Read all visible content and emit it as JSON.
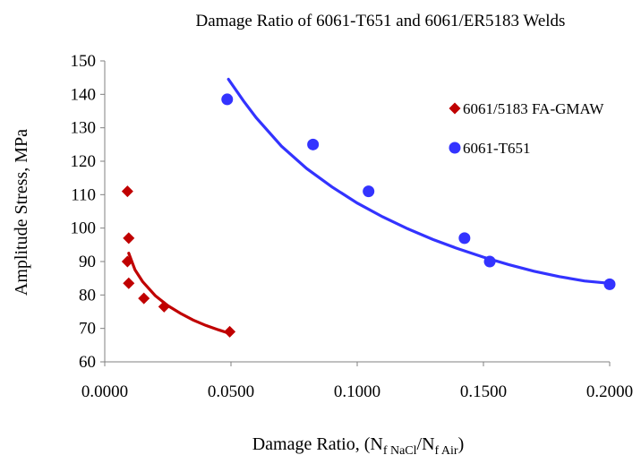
{
  "chart_data": {
    "type": "scatter",
    "title": "Damage Ratio of 6061-T651 and 6061/ER5183 Welds",
    "xlabel_parts": {
      "prefix": "Damage Ratio, (N",
      "sub1": "f NaCl",
      "mid": "/N",
      "sub2": "f Air",
      "suffix": ")"
    },
    "ylabel": "Amplitude Stress, MPa",
    "xlim": [
      0,
      0.2
    ],
    "ylim": [
      60,
      150
    ],
    "xticks": [
      "0.0000",
      "0.0500",
      "0.1000",
      "0.1500",
      "0.2000"
    ],
    "yticks": [
      "60",
      "70",
      "80",
      "90",
      "100",
      "110",
      "120",
      "130",
      "140",
      "150"
    ],
    "xtick_values": [
      0,
      0.05,
      0.1,
      0.15,
      0.2
    ],
    "ytick_values": [
      60,
      70,
      80,
      90,
      100,
      110,
      120,
      130,
      140,
      150
    ],
    "grid": false,
    "legend_position": "right",
    "series": [
      {
        "name": "6061/5183 FA-GMAW",
        "marker": "diamond",
        "color": "#c00000",
        "points": [
          [
            0.009,
            111
          ],
          [
            0.0095,
            97
          ],
          [
            0.009,
            90
          ],
          [
            0.0095,
            83.5
          ],
          [
            0.0155,
            79
          ],
          [
            0.0235,
            76.5
          ],
          [
            0.0495,
            69
          ]
        ],
        "trend": [
          [
            0.0095,
            92.5
          ],
          [
            0.012,
            87.5
          ],
          [
            0.015,
            84
          ],
          [
            0.02,
            79.8
          ],
          [
            0.025,
            76.8
          ],
          [
            0.03,
            74.5
          ],
          [
            0.035,
            72.5
          ],
          [
            0.04,
            70.9
          ],
          [
            0.045,
            69.6
          ],
          [
            0.0495,
            68.5
          ]
        ]
      },
      {
        "name": "6061-T651",
        "marker": "circle",
        "color": "#3333ff",
        "points": [
          [
            0.0485,
            138.5
          ],
          [
            0.0825,
            125
          ],
          [
            0.1045,
            111
          ],
          [
            0.1425,
            97
          ],
          [
            0.1525,
            90
          ],
          [
            0.2,
            83.2
          ]
        ],
        "trend": [
          [
            0.049,
            144.5
          ],
          [
            0.055,
            138
          ],
          [
            0.06,
            133
          ],
          [
            0.07,
            124.5
          ],
          [
            0.08,
            117.8
          ],
          [
            0.09,
            112.3
          ],
          [
            0.1,
            107.5
          ],
          [
            0.11,
            103.4
          ],
          [
            0.12,
            99.8
          ],
          [
            0.13,
            96.6
          ],
          [
            0.14,
            93.8
          ],
          [
            0.15,
            91.3
          ],
          [
            0.16,
            89.1
          ],
          [
            0.17,
            87.1
          ],
          [
            0.18,
            85.5
          ],
          [
            0.19,
            84.2
          ],
          [
            0.2,
            83.5
          ]
        ]
      }
    ]
  }
}
